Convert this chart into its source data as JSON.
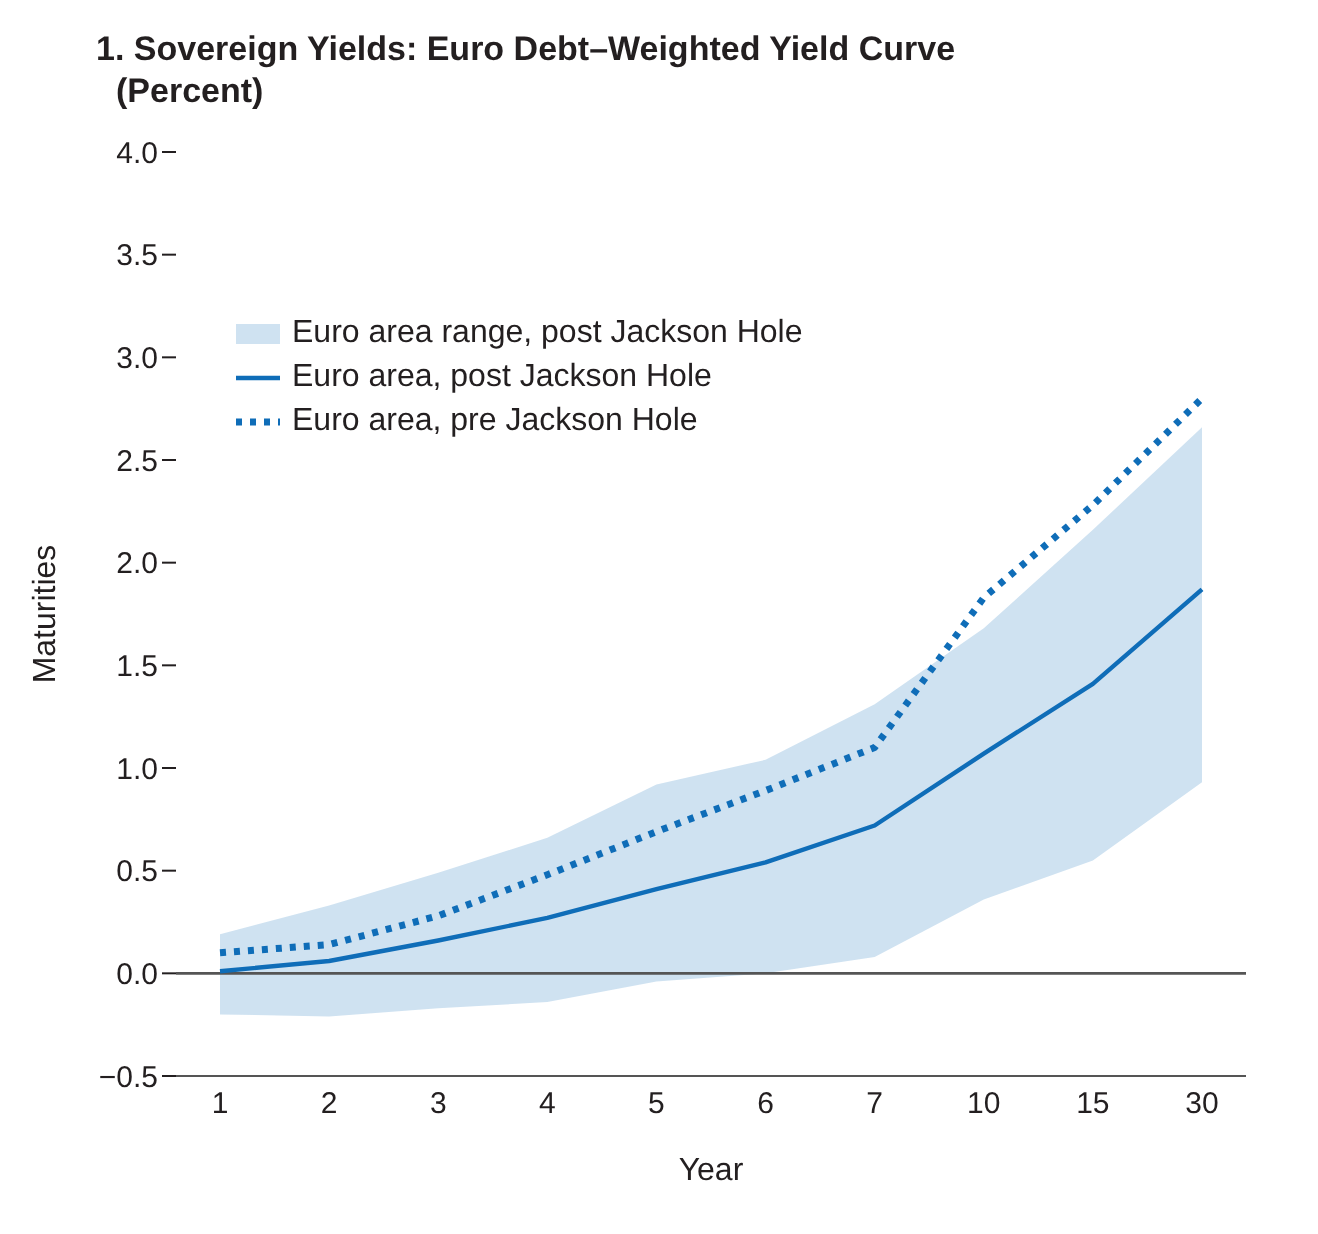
{
  "chart_data": {
    "type": "line",
    "title": "1. Sovereign Yields: Euro Debt–Weighted Yield Curve",
    "subtitle": "(Percent)",
    "xlabel": "Year",
    "ylabel": "Maturities",
    "categories": [
      "1",
      "2",
      "3",
      "4",
      "5",
      "6",
      "7",
      "10",
      "15",
      "30"
    ],
    "annotations": [
      "Euro area range, post Jackson Hole"
    ],
    "series": [
      {
        "name": "Euro area, post Jackson Hole",
        "color": "#0f6db8",
        "line_style": "solid",
        "values": [
          0.01,
          0.06,
          0.16,
          0.27,
          0.41,
          0.54,
          0.72,
          1.07,
          1.41,
          1.87
        ],
        "lower": [
          -0.2,
          -0.21,
          -0.17,
          -0.14,
          -0.04,
          0.0,
          0.08,
          0.36,
          0.55,
          0.93
        ],
        "upper": [
          0.19,
          0.33,
          0.49,
          0.66,
          0.92,
          1.04,
          1.31,
          1.68,
          2.16,
          2.66
        ]
      },
      {
        "name": "Euro area, pre Jackson Hole",
        "color": "#0f6db8",
        "line_style": "dotted",
        "values": [
          0.1,
          0.14,
          0.28,
          0.48,
          0.69,
          0.89,
          1.1,
          1.83,
          2.28,
          2.8
        ]
      }
    ],
    "ylim": [
      -0.5,
      4.0
    ],
    "yticks": [
      {
        "value": -0.5,
        "label": "−0.5"
      },
      {
        "value": 0,
        "label": "0.0"
      },
      {
        "value": 0.5,
        "label": "0.5"
      },
      {
        "value": 1,
        "label": "1.0"
      },
      {
        "value": 1.5,
        "label": "1.5"
      },
      {
        "value": 2,
        "label": "2.0"
      },
      {
        "value": 2.5,
        "label": "2.5"
      },
      {
        "value": 3,
        "label": "3.0"
      },
      {
        "value": 3.5,
        "label": "3.5"
      },
      {
        "value": 4,
        "label": "4.0"
      }
    ],
    "ref_lines": [
      {
        "axis": "y",
        "value": 0,
        "color": "#555555"
      }
    ],
    "legend": "top left",
    "marker": "none"
  }
}
